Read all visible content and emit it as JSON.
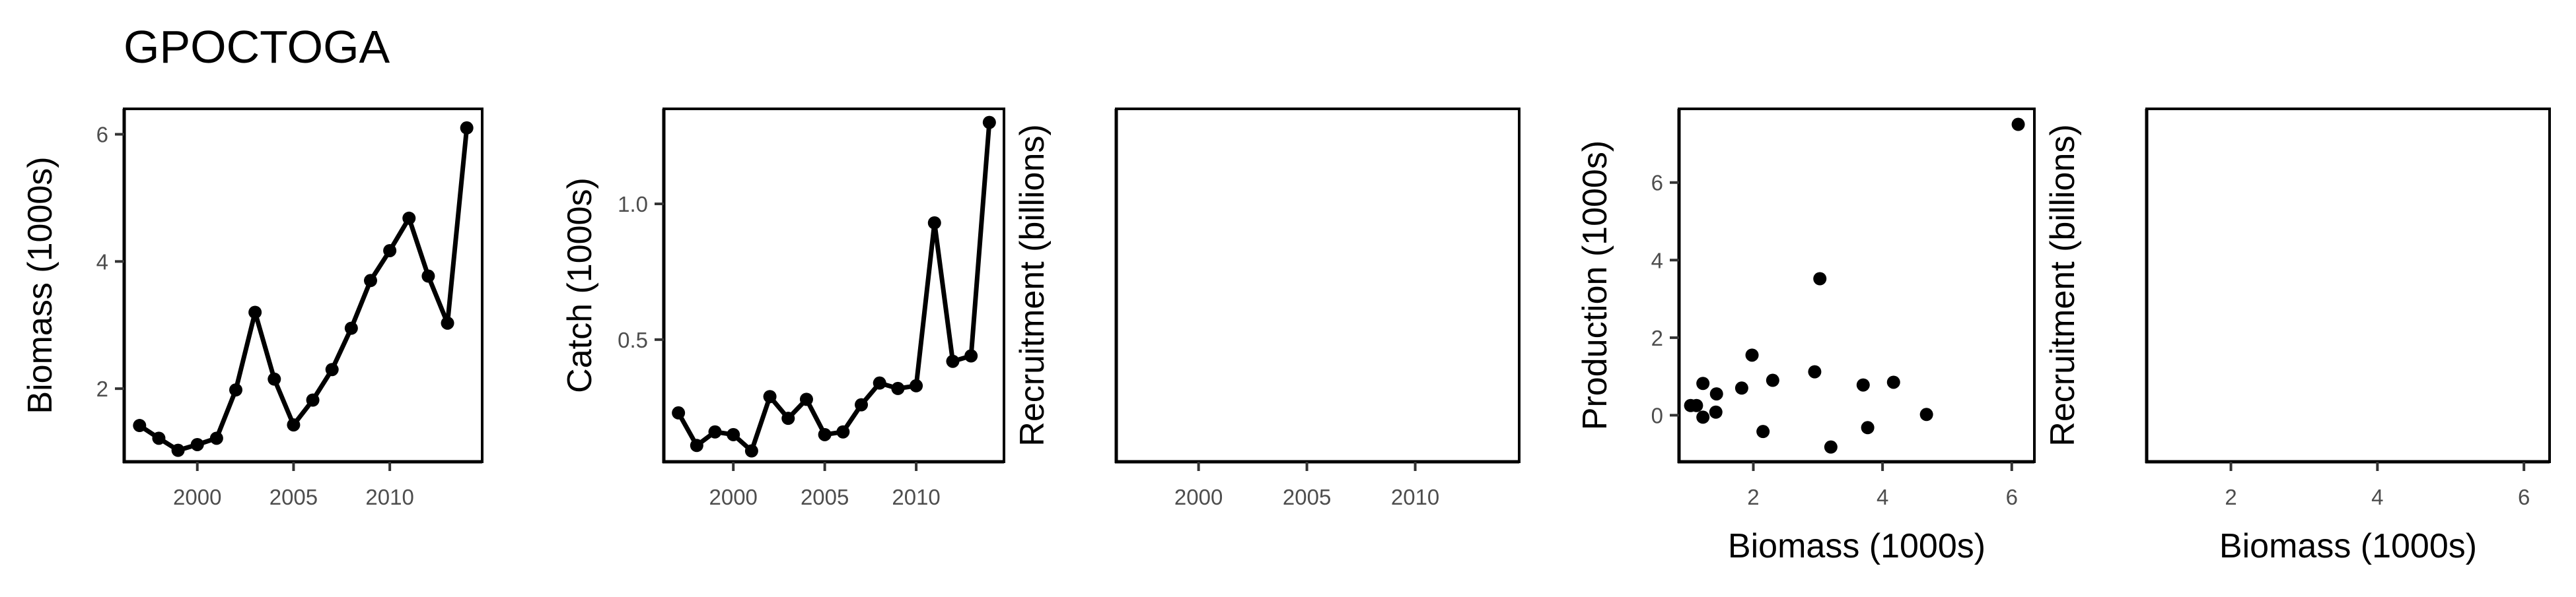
{
  "page": {
    "title": "GPOCTOGA"
  },
  "chart_data": [
    {
      "type": "line",
      "title": "",
      "xlabel": "",
      "ylabel": "Biomass (1000s)",
      "xlim": [
        1996.2,
        2014.8
      ],
      "ylim": [
        0.85,
        6.4
      ],
      "xticks": [
        2000,
        2005,
        2010
      ],
      "yticks": [
        2,
        4,
        6
      ],
      "x": [
        1997,
        1998,
        1999,
        2000,
        2001,
        2002,
        2003,
        2004,
        2005,
        2006,
        2007,
        2008,
        2009,
        2010,
        2011,
        2012,
        2013,
        2014
      ],
      "y": [
        1.42,
        1.22,
        1.03,
        1.12,
        1.22,
        1.98,
        3.2,
        2.15,
        1.43,
        1.82,
        2.3,
        2.95,
        3.7,
        4.17,
        4.68,
        3.77,
        3.03,
        6.1
      ],
      "grid": false
    },
    {
      "type": "line",
      "title": "",
      "xlabel": "",
      "ylabel": "Catch (1000s)",
      "xlim": [
        1996.2,
        2014.8
      ],
      "ylim": [
        0.05,
        1.35
      ],
      "xticks": [
        2000,
        2005,
        2010
      ],
      "yticks": [
        0.5,
        1.0
      ],
      "ytick_labels": [
        "0.5",
        "1.0"
      ],
      "x": [
        1997,
        1998,
        1999,
        2000,
        2001,
        2002,
        2003,
        2004,
        2005,
        2006,
        2007,
        2008,
        2009,
        2010,
        2011,
        2012,
        2013,
        2014
      ],
      "y": [
        0.23,
        0.11,
        0.16,
        0.15,
        0.09,
        0.29,
        0.21,
        0.28,
        0.15,
        0.16,
        0.26,
        0.34,
        0.32,
        0.33,
        0.93,
        0.42,
        0.44,
        1.3
      ],
      "grid": false
    },
    {
      "type": "line",
      "title": "",
      "xlabel": "",
      "ylabel": "Recruitment (billions)",
      "xlim": [
        1996.2,
        2014.8
      ],
      "xticks": [
        2000,
        2005,
        2010
      ],
      "yticks": [],
      "x": [],
      "y": [],
      "grid": false
    },
    {
      "type": "scatter",
      "title": "",
      "xlabel": "Biomass (1000s)",
      "ylabel": "Production (1000s)",
      "xlim": [
        0.85,
        6.35
      ],
      "ylim": [
        -1.2,
        7.9
      ],
      "xticks": [
        2,
        4,
        6
      ],
      "yticks": [
        0,
        2,
        4,
        6
      ],
      "x": [
        1.03,
        1.12,
        1.22,
        1.22,
        1.42,
        1.43,
        1.82,
        1.98,
        2.15,
        2.3,
        2.95,
        3.03,
        3.2,
        3.7,
        3.77,
        4.17,
        4.68,
        6.1
      ],
      "y": [
        0.25,
        0.25,
        -0.05,
        0.82,
        0.08,
        0.55,
        0.7,
        1.55,
        -0.42,
        0.9,
        1.12,
        3.52,
        -0.82,
        0.78,
        -0.32,
        0.85,
        0.02,
        7.5
      ],
      "grid": false
    },
    {
      "type": "scatter",
      "title": "",
      "xlabel": "Biomass (1000s)",
      "ylabel": "Recruitment (billions)",
      "xlim": [
        0.85,
        6.35
      ],
      "xticks": [
        2,
        4,
        6
      ],
      "yticks": [],
      "x": [],
      "y": [],
      "grid": false
    }
  ]
}
